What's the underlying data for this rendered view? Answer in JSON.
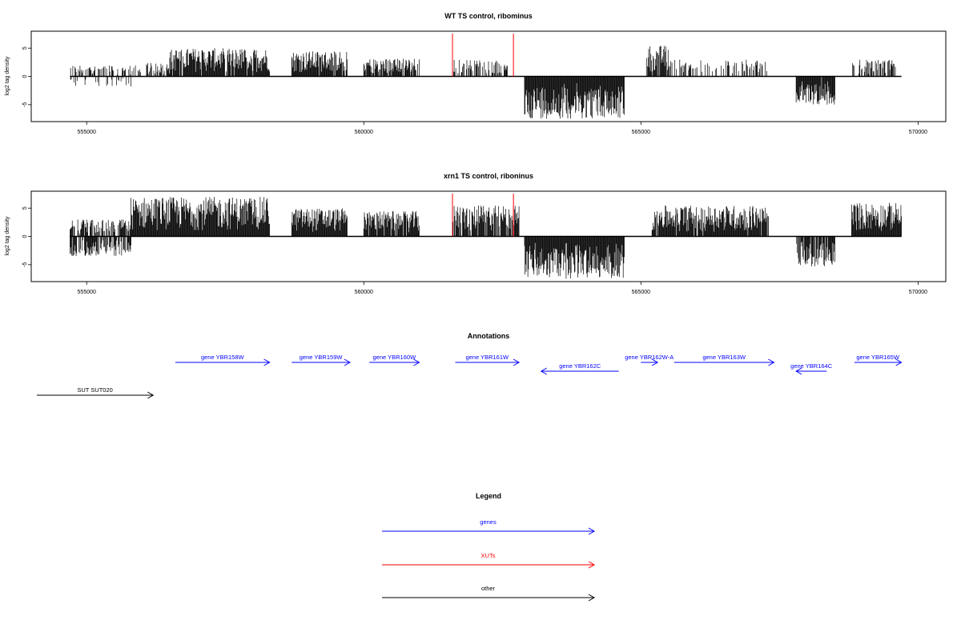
{
  "colors": {
    "axis": "#000000",
    "bar": "#000000",
    "gene": "#0000ff",
    "xut": "#ff0000",
    "other": "#000000"
  },
  "chart_data": [
    {
      "type": "bar",
      "title": "WT TS control, ribominus",
      "ylabel": "log2 tag density",
      "xlim": [
        554000,
        570500
      ],
      "ylim": [
        -8,
        8
      ],
      "x_ticks": [
        555000,
        560000,
        565000,
        570000
      ],
      "y_ticks": [
        5,
        0,
        -5
      ],
      "marker_lines_x": [
        561600,
        562700
      ],
      "marker_color": "red",
      "regions": [
        {
          "start": 554700,
          "end": 555800,
          "sign": 1,
          "max": 2.0,
          "dense": 0.45
        },
        {
          "start": 554700,
          "end": 555800,
          "sign": -1,
          "max": 1.8,
          "dense": 0.25
        },
        {
          "start": 555800,
          "end": 556500,
          "sign": 1,
          "max": 2.5,
          "dense": 0.5
        },
        {
          "start": 556500,
          "end": 558300,
          "sign": 1,
          "max": 5.0,
          "dense": 0.95
        },
        {
          "start": 558700,
          "end": 559700,
          "sign": 1,
          "max": 4.5,
          "dense": 0.95
        },
        {
          "start": 560000,
          "end": 561000,
          "sign": 1,
          "max": 3.2,
          "dense": 0.8
        },
        {
          "start": 561600,
          "end": 562600,
          "sign": 1,
          "max": 3.0,
          "dense": 0.5
        },
        {
          "start": 562900,
          "end": 564700,
          "sign": -1,
          "max": 7.5,
          "dense": 1.0
        },
        {
          "start": 565100,
          "end": 565500,
          "sign": 1,
          "max": 5.5,
          "dense": 0.9
        },
        {
          "start": 565500,
          "end": 567300,
          "sign": 1,
          "max": 3.0,
          "dense": 0.35
        },
        {
          "start": 567800,
          "end": 568500,
          "sign": -1,
          "max": 5.0,
          "dense": 0.9
        },
        {
          "start": 568800,
          "end": 569600,
          "sign": 1,
          "max": 3.0,
          "dense": 0.55
        }
      ]
    },
    {
      "type": "bar",
      "title": "xrn1 TS control, riboninus",
      "ylabel": "log2 tag density",
      "xlim": [
        554000,
        570500
      ],
      "ylim": [
        -8,
        8
      ],
      "x_ticks": [
        555000,
        560000,
        565000,
        570000
      ],
      "y_ticks": [
        5,
        0,
        -5
      ],
      "marker_lines_x": [
        561600,
        562700
      ],
      "marker_color": "red",
      "regions": [
        {
          "start": 554700,
          "end": 555800,
          "sign": 1,
          "max": 3.0,
          "dense": 0.7
        },
        {
          "start": 554700,
          "end": 555800,
          "sign": -1,
          "max": 3.5,
          "dense": 0.8
        },
        {
          "start": 555800,
          "end": 558300,
          "sign": 1,
          "max": 7.0,
          "dense": 1.0
        },
        {
          "start": 558700,
          "end": 559700,
          "sign": 1,
          "max": 5.0,
          "dense": 1.0
        },
        {
          "start": 560000,
          "end": 561000,
          "sign": 1,
          "max": 4.5,
          "dense": 0.95
        },
        {
          "start": 561600,
          "end": 562800,
          "sign": 1,
          "max": 5.5,
          "dense": 0.85
        },
        {
          "start": 562900,
          "end": 564700,
          "sign": -1,
          "max": 7.5,
          "dense": 1.0
        },
        {
          "start": 565200,
          "end": 567300,
          "sign": 1,
          "max": 5.5,
          "dense": 0.95
        },
        {
          "start": 567800,
          "end": 568500,
          "sign": -1,
          "max": 5.5,
          "dense": 0.9
        },
        {
          "start": 568800,
          "end": 569700,
          "sign": 1,
          "max": 6.0,
          "dense": 1.0
        }
      ]
    }
  ],
  "annotations": {
    "title": "Annotations",
    "features": [
      {
        "label": "gene YBR158W",
        "start": 556600,
        "end": 558300,
        "strand": "+",
        "type": "gene",
        "row": 0
      },
      {
        "label": "gene YBR159W",
        "start": 558700,
        "end": 559750,
        "strand": "+",
        "type": "gene",
        "row": 0
      },
      {
        "label": "gene YBR160W",
        "start": 560100,
        "end": 561000,
        "strand": "+",
        "type": "gene",
        "row": 0
      },
      {
        "label": "gene YBR161W",
        "start": 561650,
        "end": 562800,
        "strand": "+",
        "type": "gene",
        "row": 0
      },
      {
        "label": "gene YBR162C",
        "start": 563200,
        "end": 564600,
        "strand": "-",
        "type": "gene",
        "row": 1
      },
      {
        "label": "gene YBR162W-A",
        "start": 565000,
        "end": 565300,
        "strand": "+",
        "type": "gene",
        "row": 0
      },
      {
        "label": "gene YBR163W",
        "start": 565600,
        "end": 567400,
        "strand": "+",
        "type": "gene",
        "row": 0
      },
      {
        "label": "gene YBR164C",
        "start": 567800,
        "end": 568350,
        "strand": "-",
        "type": "gene",
        "row": 1
      },
      {
        "label": "gene YBR165W",
        "start": 568850,
        "end": 569700,
        "strand": "+",
        "type": "gene",
        "row": 0
      },
      {
        "label": "SUT SUT020",
        "start": 554100,
        "end": 556200,
        "strand": "+",
        "type": "other",
        "row": 2
      }
    ]
  },
  "legend": {
    "title": "Legend",
    "items": [
      {
        "label": "genes",
        "type": "gene"
      },
      {
        "label": "XUTs",
        "type": "xut"
      },
      {
        "label": "other",
        "type": "other"
      }
    ]
  }
}
